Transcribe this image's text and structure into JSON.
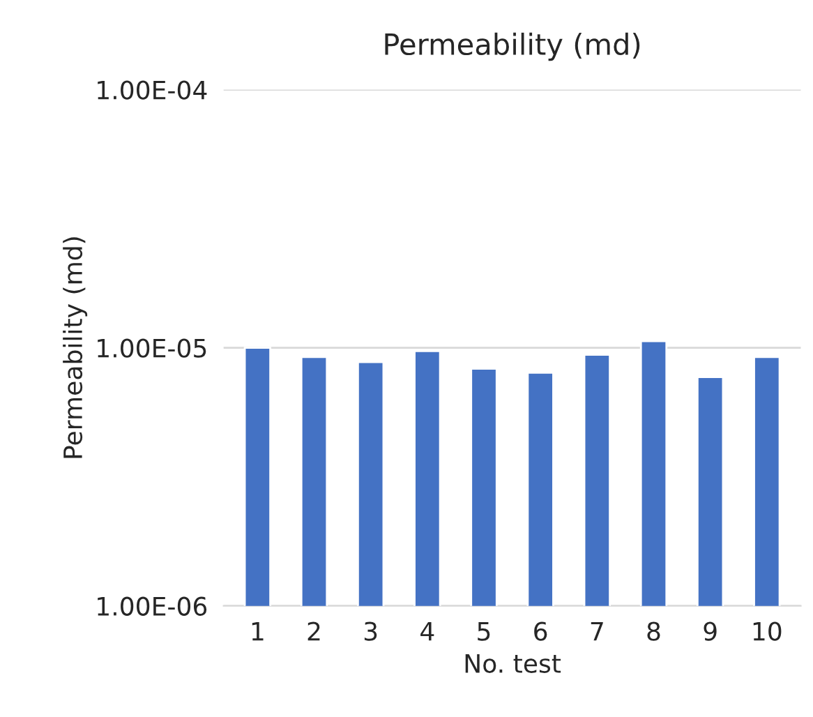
{
  "chart_data": {
    "type": "bar",
    "title": "Permeability (md)",
    "xlabel": "No. test",
    "ylabel": "Permeability (md)",
    "categories": [
      "1",
      "2",
      "3",
      "4",
      "5",
      "6",
      "7",
      "8",
      "9",
      "10"
    ],
    "values": [
      1e-05,
      9.2e-06,
      8.8e-06,
      9.7e-06,
      8.3e-06,
      8e-06,
      9.4e-06,
      1.06e-05,
      7.7e-06,
      9.2e-06
    ],
    "color": "#4472c4",
    "log": true,
    "ylim": [
      1e-06,
      0.0001
    ],
    "yticks": [
      {
        "value": 1e-06,
        "label": "1.00E-06"
      },
      {
        "value": 1e-05,
        "label": "1.00E-05"
      },
      {
        "value": 0.0001,
        "label": "1.00E-04"
      }
    ],
    "grid": "y"
  }
}
